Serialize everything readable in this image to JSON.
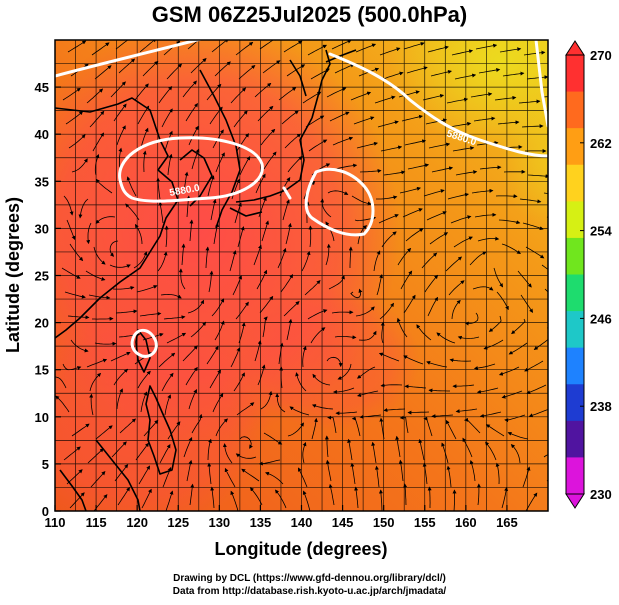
{
  "title": "GSM 06Z25Jul2025 (500.0hPa)",
  "axes": {
    "xlabel": "Longitude (degrees)",
    "ylabel": "Latitude  (degrees)",
    "xlim": [
      110,
      170
    ],
    "ylim": [
      0,
      50
    ],
    "xticks": [
      110,
      115,
      120,
      125,
      130,
      135,
      140,
      145,
      150,
      155,
      160,
      165
    ],
    "yticks": [
      0,
      5,
      10,
      15,
      20,
      25,
      30,
      35,
      40,
      45
    ],
    "grid": true
  },
  "colorbar": {
    "min": 230,
    "max": 270,
    "labels": [
      "270",
      "262",
      "254",
      "246",
      "238",
      "230"
    ],
    "colors": [
      "#ff3030",
      "#ff6a1e",
      "#ff9e14",
      "#ffd21e",
      "#d6f014",
      "#70e61e",
      "#1edc6e",
      "#1ec8c8",
      "#1e82ff",
      "#1e3cd2",
      "#5014a0",
      "#dc14dc"
    ]
  },
  "contours": {
    "label": "5880.0",
    "color": "#ffffff"
  },
  "field_colors": {
    "warm_core": "#ff4a4a",
    "warm": "#ff5a3a",
    "mid": "#f26a1a",
    "cool": "#f4a818",
    "coolest": "#e8d61e",
    "land_line": "#000000"
  },
  "credits": {
    "line1": "Drawing by DCL (https://www.gfd-dennou.org/library/dcl/)",
    "line2": "Data from http://database.rish.kyoto-u.ac.jp/arch/jmadata/"
  }
}
